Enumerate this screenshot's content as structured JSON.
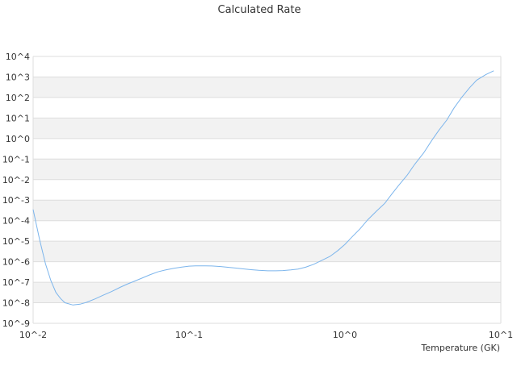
{
  "chart_data": {
    "type": "line",
    "title": "Calculated Rate",
    "xlabel": "Temperature (GK)",
    "ylabel": "",
    "x_scale": "log",
    "y_scale": "log",
    "xlim": [
      0.01,
      10
    ],
    "ylim": [
      1e-09,
      10000
    ],
    "x_tick_labels": [
      "10^-2",
      "10^-1",
      "10^0",
      "10^1"
    ],
    "y_tick_labels": [
      "10^-9",
      "10^-8",
      "10^-7",
      "10^-6",
      "10^-5",
      "10^-4",
      "10^-3",
      "10^-2",
      "10^-1",
      "10^0",
      "10^1",
      "10^2",
      "10^3",
      "10^4"
    ],
    "grid": "alternating horizontal bands",
    "legend": "none",
    "colors": {
      "line": "#7cb5ec",
      "band": "#f2f2f2",
      "gridline": "#dddddd"
    },
    "series": [
      {
        "x": [
          0.01,
          0.011,
          0.012,
          0.013,
          0.014,
          0.015,
          0.016,
          0.018,
          0.02,
          0.022,
          0.025,
          0.028,
          0.032,
          0.036,
          0.04,
          0.045,
          0.05,
          0.056,
          0.063,
          0.07,
          0.08,
          0.09,
          0.1,
          0.11,
          0.125,
          0.14,
          0.16,
          0.18,
          0.2,
          0.22,
          0.25,
          0.28,
          0.32,
          0.36,
          0.4,
          0.45,
          0.5,
          0.56,
          0.63,
          0.7,
          0.8,
          0.9,
          1.0,
          1.1,
          1.25,
          1.4,
          1.6,
          1.8,
          2.0,
          2.2,
          2.5,
          2.8,
          3.2,
          3.6,
          4.0,
          4.5,
          5.0,
          5.6,
          6.3,
          7.0,
          8.0,
          9.0
        ],
        "y": [
          0.00035,
          1.2e-05,
          8e-07,
          1.2e-07,
          3.2e-08,
          1.6e-08,
          1e-08,
          7.8e-09,
          8.5e-09,
          1.05e-08,
          1.55e-08,
          2.3e-08,
          3.6e-08,
          5.6e-08,
          8e-08,
          1.15e-07,
          1.6e-07,
          2.3e-07,
          3.2e-07,
          3.9e-07,
          4.8e-07,
          5.5e-07,
          6.1e-07,
          6.3e-07,
          6.3e-07,
          6.2e-07,
          5.8e-07,
          5.3e-07,
          4.9e-07,
          4.5e-07,
          4.1e-07,
          3.8e-07,
          3.6e-07,
          3.6e-07,
          3.7e-07,
          4e-07,
          4.4e-07,
          5.4e-07,
          7.5e-07,
          1.1e-06,
          1.8e-06,
          3.5e-06,
          7e-06,
          1.5e-05,
          4e-05,
          0.00011,
          0.0003,
          0.0007,
          0.002,
          0.005,
          0.016,
          0.055,
          0.2,
          0.8,
          2.5,
          8,
          30,
          100,
          300,
          700,
          1300,
          2000
        ]
      }
    ]
  }
}
